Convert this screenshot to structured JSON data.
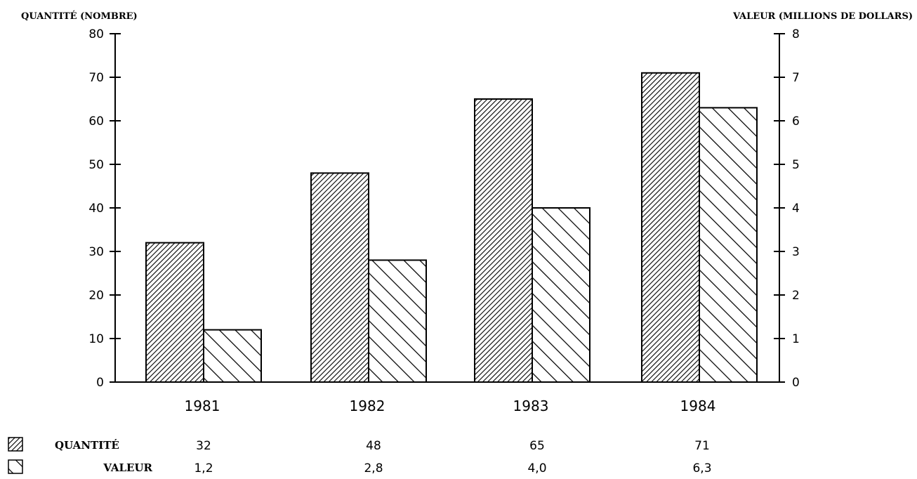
{
  "chart_data": {
    "type": "bar",
    "left_axis_title": "QUANTITÉ (NOMBRE)",
    "right_axis_title": "VALEUR (MILLIONS DE DOLLARS)",
    "categories": [
      "1981",
      "1982",
      "1983",
      "1984"
    ],
    "series": [
      {
        "name": "QUANTITÉ",
        "axis": "left",
        "pattern": "fine-diagonal-hatch",
        "values": [
          32,
          48,
          65,
          71
        ]
      },
      {
        "name": "VALEUR",
        "axis": "right",
        "pattern": "wide-diagonal-hatch",
        "values": [
          1.2,
          2.8,
          4.0,
          6.3
        ]
      }
    ],
    "left_ylim": [
      0,
      80
    ],
    "left_ticks": [
      "0",
      "10",
      "20",
      "30",
      "40",
      "50",
      "60",
      "70",
      "80"
    ],
    "right_ylim": [
      0,
      8
    ],
    "right_ticks": [
      "0",
      "1",
      "2",
      "3",
      "4",
      "5",
      "6",
      "7",
      "8"
    ],
    "grid": false,
    "legend": "bottom-table",
    "data_table": {
      "rows": [
        {
          "label": "QUANTITÉ",
          "cells": [
            "32",
            "48",
            "65",
            "71"
          ]
        },
        {
          "label": "VALEUR",
          "cells": [
            "1,2",
            "2,8",
            "4,0",
            "6,3"
          ]
        }
      ]
    }
  }
}
